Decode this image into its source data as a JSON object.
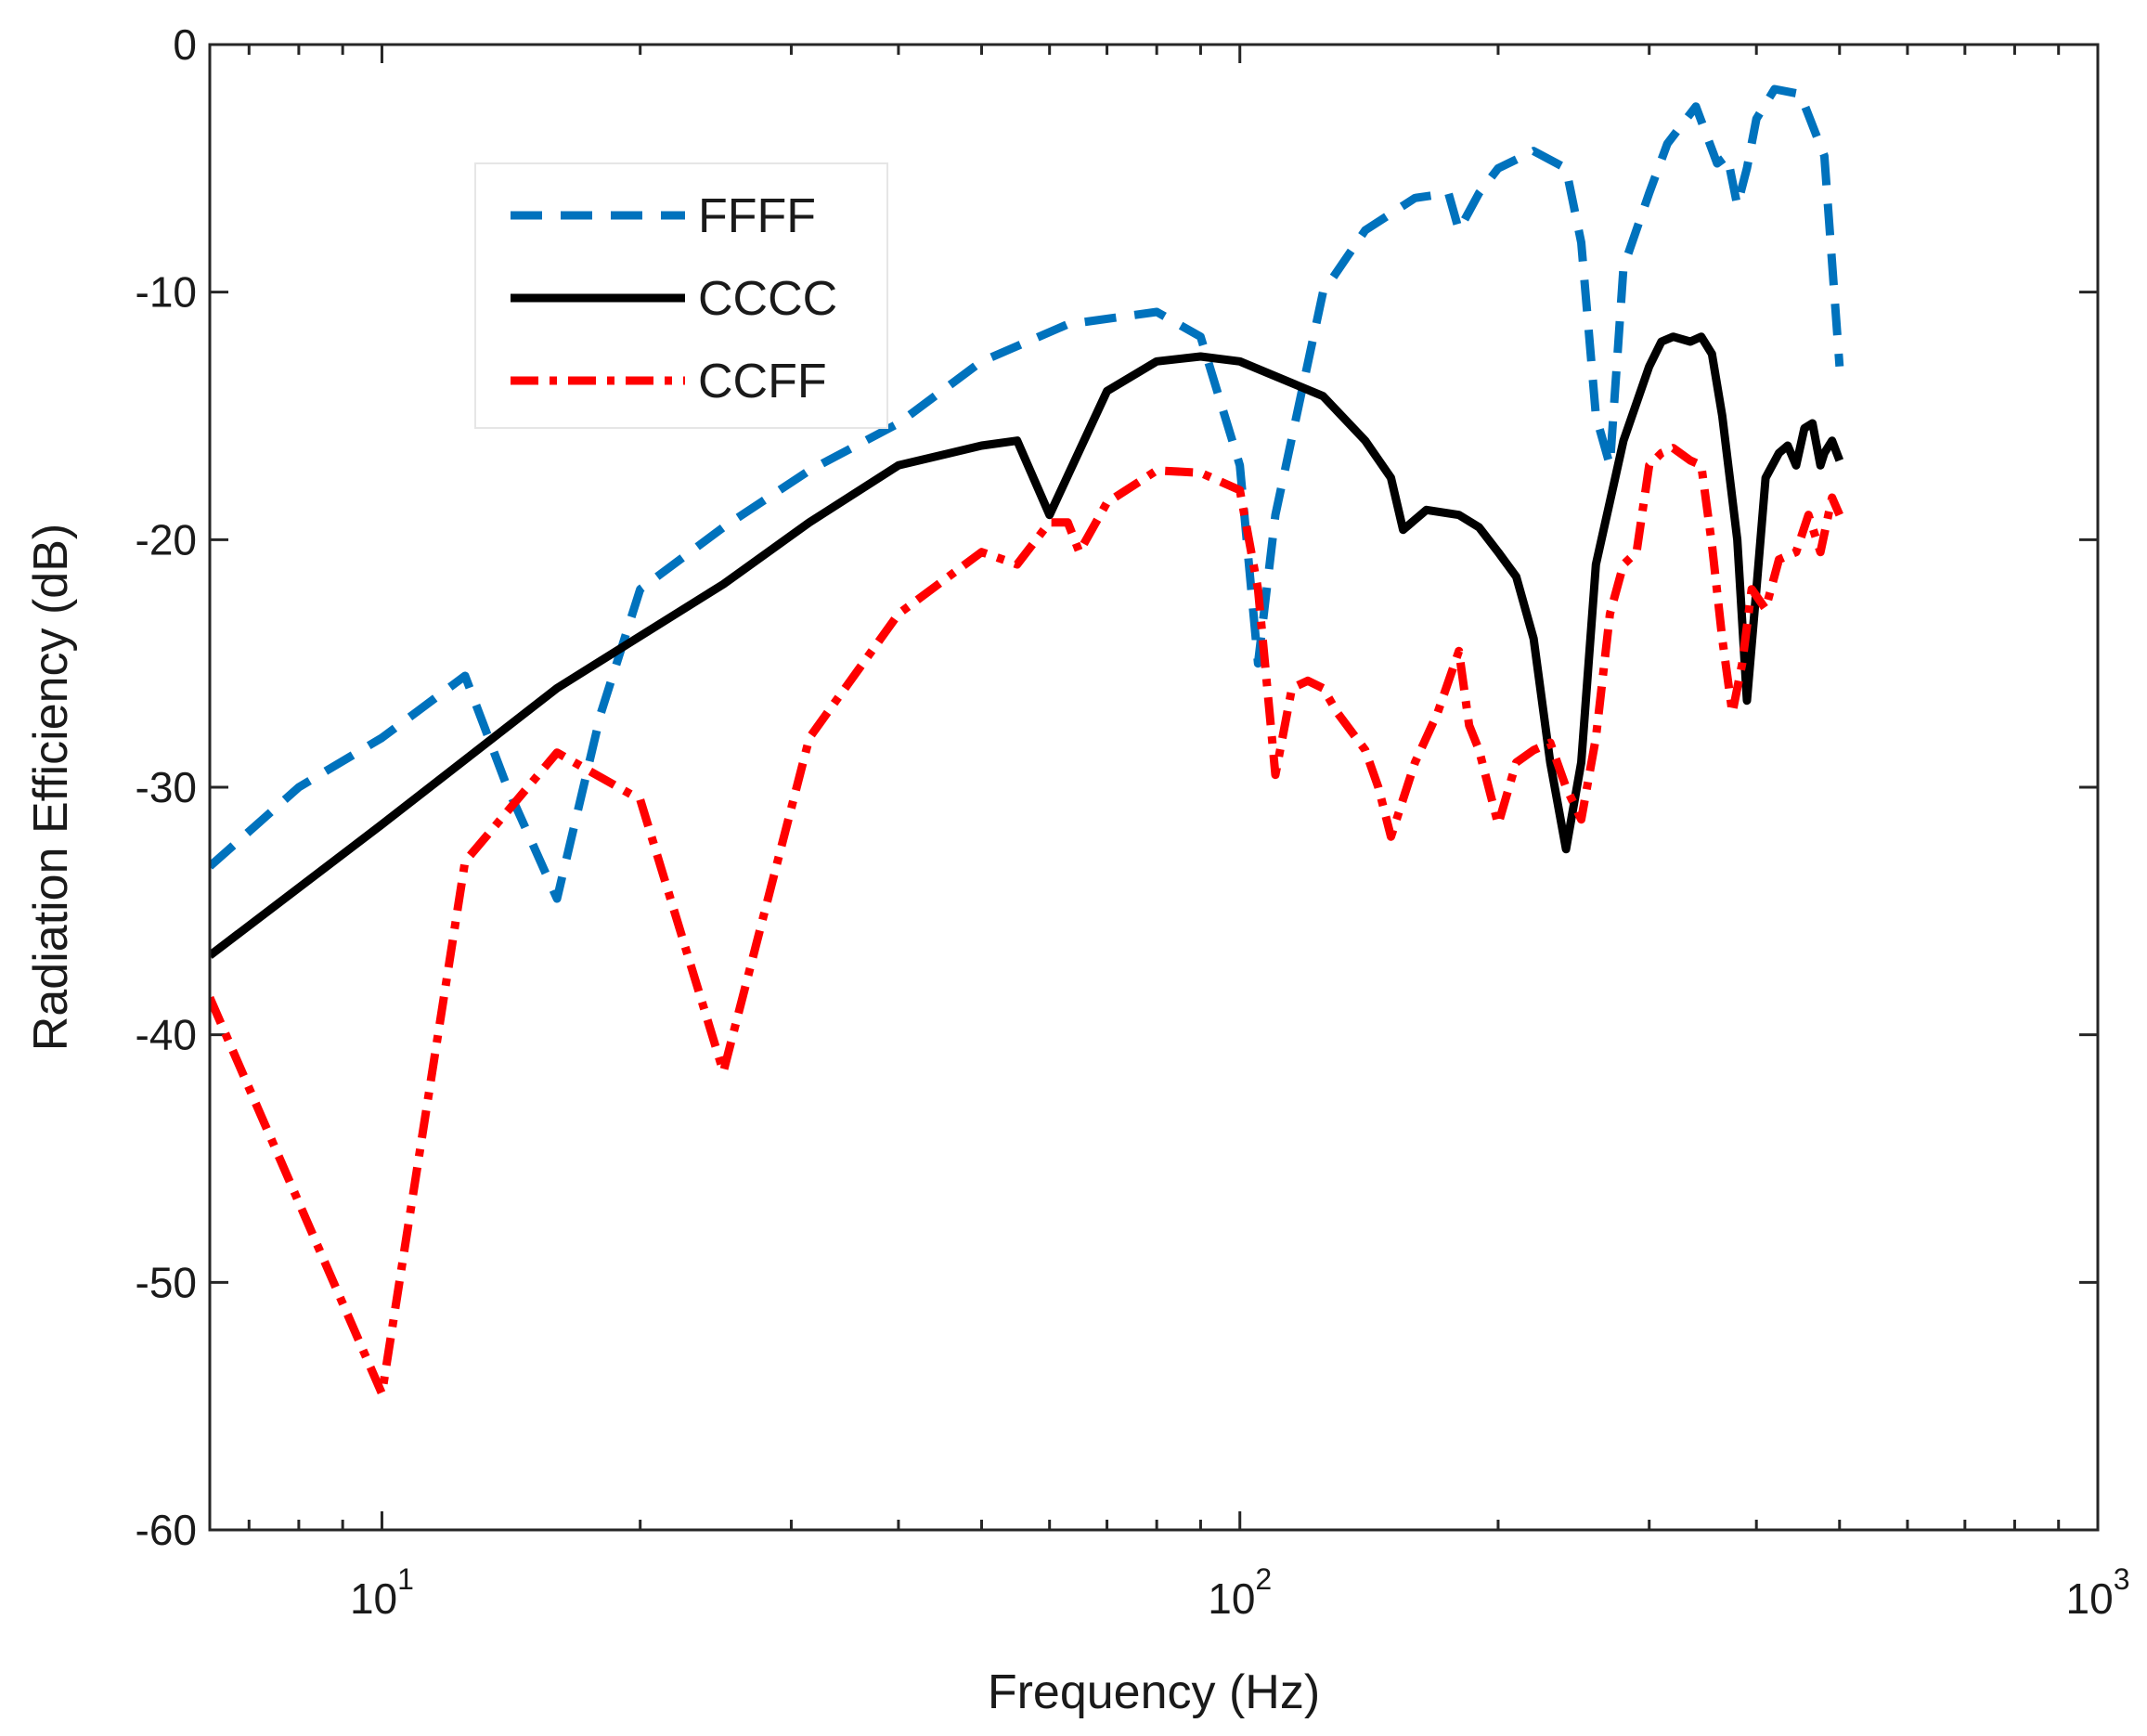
{
  "chart_data": {
    "type": "line",
    "xscale": "log",
    "xlabel": "Frequency (Hz)",
    "ylabel": "Radiation Efficiency (dB)",
    "xlim": [
      6.3,
      1000
    ],
    "ylim": [
      -60,
      0
    ],
    "x_ticks": [
      {
        "base": "10",
        "exp": "1",
        "value": 10
      },
      {
        "base": "10",
        "exp": "2",
        "value": 100
      },
      {
        "base": "10",
        "exp": "3",
        "value": 1000
      }
    ],
    "y_ticks": [
      {
        "label": "0",
        "value": 0
      },
      {
        "label": "-10",
        "value": -10
      },
      {
        "label": "-20",
        "value": -20
      },
      {
        "label": "-30",
        "value": -30
      },
      {
        "label": "-40",
        "value": -40
      },
      {
        "label": "-50",
        "value": -50
      },
      {
        "label": "-60",
        "value": -60
      }
    ],
    "legend_position": "top-left",
    "series": [
      {
        "name": "FFFF",
        "color": "#0072BD",
        "style": "dashed",
        "points": [
          [
            6.3,
            -33.2
          ],
          [
            8,
            -30
          ],
          [
            10,
            -28
          ],
          [
            12.5,
            -25.5
          ],
          [
            14,
            -30
          ],
          [
            16,
            -34.5
          ],
          [
            18,
            -27
          ],
          [
            20,
            -22
          ],
          [
            25,
            -19.5
          ],
          [
            31.5,
            -17.2
          ],
          [
            40,
            -15.3
          ],
          [
            50,
            -12.8
          ],
          [
            63,
            -11.3
          ],
          [
            80,
            -10.8
          ],
          [
            90,
            -11.8
          ],
          [
            100,
            -17
          ],
          [
            105,
            -25
          ],
          [
            110,
            -19
          ],
          [
            125,
            -10
          ],
          [
            140,
            -7.5
          ],
          [
            160,
            -6.2
          ],
          [
            175,
            -6
          ],
          [
            180,
            -7.5
          ],
          [
            190,
            -6
          ],
          [
            200,
            -5
          ],
          [
            220,
            -4.3
          ],
          [
            240,
            -5
          ],
          [
            250,
            -8
          ],
          [
            260,
            -15
          ],
          [
            270,
            -17
          ],
          [
            280,
            -9
          ],
          [
            300,
            -6
          ],
          [
            315,
            -4
          ],
          [
            340,
            -2.5
          ],
          [
            360,
            -4.8
          ],
          [
            370,
            -4.5
          ],
          [
            380,
            -6.5
          ],
          [
            390,
            -5
          ],
          [
            400,
            -3
          ],
          [
            420,
            -1.8
          ],
          [
            450,
            -2
          ],
          [
            480,
            -4.5
          ],
          [
            500,
            -13
          ]
        ]
      },
      {
        "name": "CCCC",
        "color": "#000000",
        "style": "solid",
        "points": [
          [
            6.3,
            -36.8
          ],
          [
            10,
            -31.5
          ],
          [
            16,
            -26
          ],
          [
            25,
            -21.8
          ],
          [
            31.5,
            -19.3
          ],
          [
            40,
            -17
          ],
          [
            50,
            -16.2
          ],
          [
            55,
            -16
          ],
          [
            60,
            -19
          ],
          [
            70,
            -14
          ],
          [
            80,
            -12.8
          ],
          [
            90,
            -12.6
          ],
          [
            100,
            -12.8
          ],
          [
            125,
            -14.2
          ],
          [
            140,
            -16
          ],
          [
            150,
            -17.5
          ],
          [
            155,
            -19.6
          ],
          [
            165,
            -18.8
          ],
          [
            180,
            -19
          ],
          [
            190,
            -19.5
          ],
          [
            200,
            -20.5
          ],
          [
            210,
            -21.5
          ],
          [
            220,
            -24
          ],
          [
            230,
            -29
          ],
          [
            240,
            -32.5
          ],
          [
            250,
            -29
          ],
          [
            260,
            -21
          ],
          [
            280,
            -16
          ],
          [
            300,
            -13
          ],
          [
            310,
            -12
          ],
          [
            320,
            -11.8
          ],
          [
            335,
            -12
          ],
          [
            345,
            -11.8
          ],
          [
            355,
            -12.5
          ],
          [
            365,
            -15
          ],
          [
            380,
            -20
          ],
          [
            390,
            -26.5
          ],
          [
            400,
            -22
          ],
          [
            410,
            -17.5
          ],
          [
            425,
            -16.5
          ],
          [
            435,
            -16.2
          ],
          [
            445,
            -17
          ],
          [
            455,
            -15.5
          ],
          [
            465,
            -15.3
          ],
          [
            475,
            -17
          ],
          [
            480,
            -16.5
          ],
          [
            490,
            -16
          ],
          [
            500,
            -16.8
          ]
        ]
      },
      {
        "name": "CCFF",
        "color": "#FF0000",
        "style": "dashdot",
        "points": [
          [
            6.3,
            -38.5
          ],
          [
            10,
            -54.5
          ],
          [
            12.5,
            -33
          ],
          [
            16,
            -28.6
          ],
          [
            20,
            -30.5
          ],
          [
            25,
            -41.5
          ],
          [
            31.5,
            -28
          ],
          [
            40,
            -23
          ],
          [
            50,
            -20.5
          ],
          [
            55,
            -21
          ],
          [
            60,
            -19.3
          ],
          [
            63,
            -19.3
          ],
          [
            65,
            -20.5
          ],
          [
            70,
            -18.5
          ],
          [
            80,
            -17.2
          ],
          [
            90,
            -17.3
          ],
          [
            100,
            -18
          ],
          [
            105,
            -22
          ],
          [
            110,
            -29.5
          ],
          [
            115,
            -26
          ],
          [
            120,
            -25.7
          ],
          [
            125,
            -26
          ],
          [
            130,
            -27
          ],
          [
            140,
            -28.5
          ],
          [
            145,
            -30
          ],
          [
            150,
            -32
          ],
          [
            160,
            -29
          ],
          [
            170,
            -27
          ],
          [
            180,
            -24.5
          ],
          [
            185,
            -27.5
          ],
          [
            190,
            -28.5
          ],
          [
            200,
            -31.5
          ],
          [
            210,
            -29
          ],
          [
            220,
            -28.5
          ],
          [
            230,
            -28.2
          ],
          [
            240,
            -30
          ],
          [
            250,
            -31.3
          ],
          [
            260,
            -28
          ],
          [
            270,
            -23
          ],
          [
            280,
            -21
          ],
          [
            290,
            -20.5
          ],
          [
            300,
            -17
          ],
          [
            310,
            -16.5
          ],
          [
            320,
            -16.3
          ],
          [
            335,
            -16.8
          ],
          [
            345,
            -17
          ],
          [
            355,
            -20.2
          ],
          [
            365,
            -24
          ],
          [
            375,
            -27
          ],
          [
            385,
            -25
          ],
          [
            395,
            -22
          ],
          [
            410,
            -22.8
          ],
          [
            425,
            -20.8
          ],
          [
            445,
            -20.5
          ],
          [
            460,
            -19
          ],
          [
            475,
            -20.5
          ],
          [
            490,
            -18.3
          ],
          [
            500,
            -19
          ]
        ]
      }
    ]
  }
}
